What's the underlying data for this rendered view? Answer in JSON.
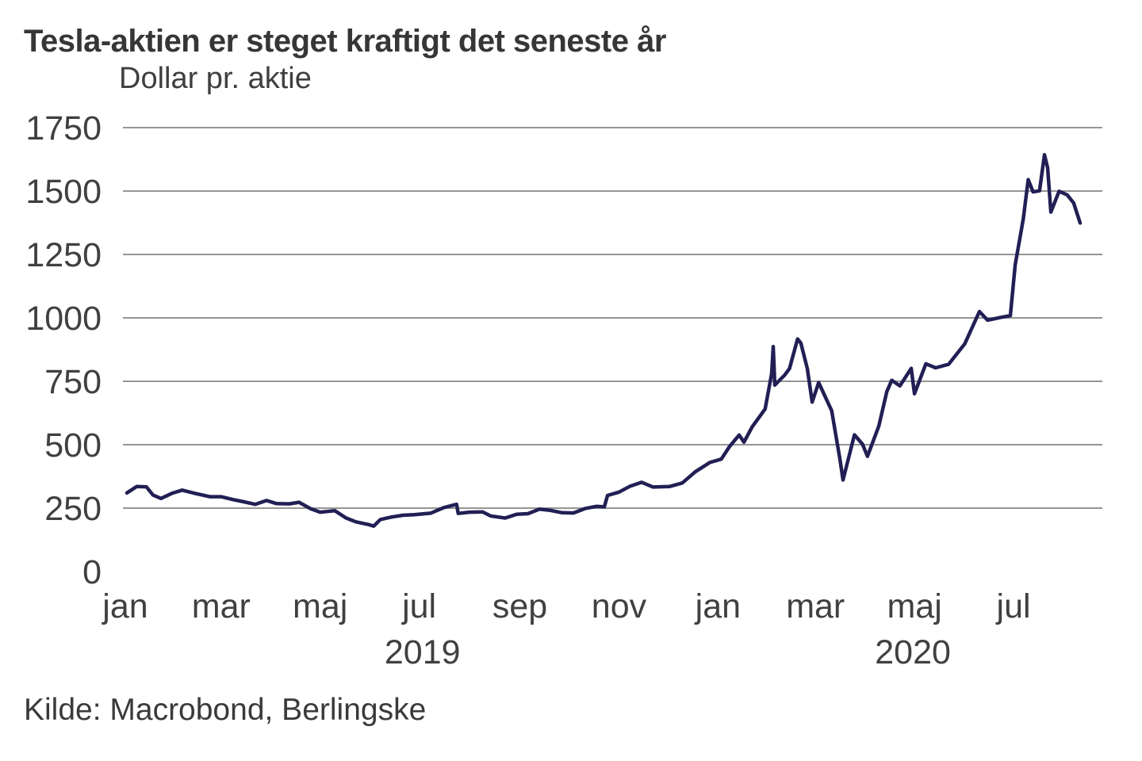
{
  "header": {
    "title": "Tesla-aktien er steget kraftigt det seneste år",
    "subtitle": "Dollar pr. aktie"
  },
  "footer": {
    "source": "Kilde: Macrobond, Berlingske"
  },
  "colors": {
    "line": "#221f55",
    "grid": "#868686",
    "text": "#404040",
    "background": "#ffffff"
  },
  "chart_data": {
    "type": "line",
    "title": "Tesla-aktien er steget kraftigt det seneste år",
    "ylabel": "Dollar pr. aktie",
    "ylim": [
      0,
      1750
    ],
    "yticks": [
      0,
      250,
      500,
      750,
      1000,
      1250,
      1500,
      1750
    ],
    "grid": "horizontal gridlines at 250-1750, none at 0",
    "legend": "none",
    "xlim": [
      "2019-01-01",
      "2020-08-11"
    ],
    "xticks": [
      {
        "label": "jan",
        "date": "2019-01-01"
      },
      {
        "label": "mar",
        "date": "2019-03-01"
      },
      {
        "label": "maj",
        "date": "2019-05-01"
      },
      {
        "label": "jul",
        "date": "2019-07-01"
      },
      {
        "label": "sep",
        "date": "2019-09-01"
      },
      {
        "label": "nov",
        "date": "2019-11-01"
      },
      {
        "label": "jan",
        "date": "2020-01-01"
      },
      {
        "label": "mar",
        "date": "2020-03-01"
      },
      {
        "label": "maj",
        "date": "2020-05-01"
      },
      {
        "label": "jul",
        "date": "2020-07-01"
      }
    ],
    "year_labels": [
      {
        "label": "2019",
        "date": "2019-07-03"
      },
      {
        "label": "2020",
        "date": "2020-04-30"
      }
    ],
    "series": [
      {
        "name": "Tesla share price (dollar per share)",
        "points": [
          [
            "2019-01-02",
            310
          ],
          [
            "2019-01-04",
            318
          ],
          [
            "2019-01-08",
            335
          ],
          [
            "2019-01-14",
            334
          ],
          [
            "2019-01-18",
            302
          ],
          [
            "2019-01-23",
            288
          ],
          [
            "2019-01-30",
            309
          ],
          [
            "2019-02-05",
            321
          ],
          [
            "2019-02-13",
            308
          ],
          [
            "2019-02-22",
            295
          ],
          [
            "2019-03-01",
            295
          ],
          [
            "2019-03-08",
            284
          ],
          [
            "2019-03-15",
            275
          ],
          [
            "2019-03-22",
            265
          ],
          [
            "2019-03-29",
            280
          ],
          [
            "2019-04-04",
            268
          ],
          [
            "2019-04-12",
            267
          ],
          [
            "2019-04-18",
            273
          ],
          [
            "2019-04-25",
            248
          ],
          [
            "2019-05-01",
            234
          ],
          [
            "2019-05-10",
            240
          ],
          [
            "2019-05-17",
            211
          ],
          [
            "2019-05-23",
            196
          ],
          [
            "2019-05-31",
            185
          ],
          [
            "2019-06-03",
            179
          ],
          [
            "2019-06-07",
            205
          ],
          [
            "2019-06-14",
            215
          ],
          [
            "2019-06-21",
            222
          ],
          [
            "2019-06-28",
            224
          ],
          [
            "2019-07-08",
            230
          ],
          [
            "2019-07-16",
            252
          ],
          [
            "2019-07-24",
            265
          ],
          [
            "2019-07-25",
            229
          ],
          [
            "2019-08-01",
            234
          ],
          [
            "2019-08-09",
            235
          ],
          [
            "2019-08-14",
            219
          ],
          [
            "2019-08-23",
            211
          ],
          [
            "2019-08-30",
            226
          ],
          [
            "2019-09-06",
            228
          ],
          [
            "2019-09-13",
            246
          ],
          [
            "2019-09-20",
            241
          ],
          [
            "2019-09-27",
            232
          ],
          [
            "2019-10-04",
            231
          ],
          [
            "2019-10-11",
            248
          ],
          [
            "2019-10-18",
            257
          ],
          [
            "2019-10-23",
            255
          ],
          [
            "2019-10-25",
            300
          ],
          [
            "2019-11-01",
            313
          ],
          [
            "2019-11-08",
            337
          ],
          [
            "2019-11-15",
            352
          ],
          [
            "2019-11-22",
            333
          ],
          [
            "2019-12-02",
            335
          ],
          [
            "2019-12-10",
            349
          ],
          [
            "2019-12-18",
            393
          ],
          [
            "2019-12-27",
            430
          ],
          [
            "2020-01-03",
            443
          ],
          [
            "2020-01-08",
            492
          ],
          [
            "2020-01-14",
            538
          ],
          [
            "2020-01-17",
            510
          ],
          [
            "2020-01-22",
            570
          ],
          [
            "2020-01-30",
            641
          ],
          [
            "2020-02-03",
            780
          ],
          [
            "2020-02-04",
            887
          ],
          [
            "2020-02-05",
            735
          ],
          [
            "2020-02-07",
            748
          ],
          [
            "2020-02-11",
            774
          ],
          [
            "2020-02-14",
            800
          ],
          [
            "2020-02-19",
            917
          ],
          [
            "2020-02-21",
            901
          ],
          [
            "2020-02-25",
            800
          ],
          [
            "2020-02-28",
            668
          ],
          [
            "2020-03-03",
            745
          ],
          [
            "2020-03-06",
            703
          ],
          [
            "2020-03-11",
            634
          ],
          [
            "2020-03-16",
            445
          ],
          [
            "2020-03-18",
            361
          ],
          [
            "2020-03-25",
            539
          ],
          [
            "2020-03-30",
            502
          ],
          [
            "2020-04-02",
            454
          ],
          [
            "2020-04-09",
            573
          ],
          [
            "2020-04-14",
            710
          ],
          [
            "2020-04-17",
            754
          ],
          [
            "2020-04-22",
            732
          ],
          [
            "2020-04-29",
            801
          ],
          [
            "2020-05-01",
            701
          ],
          [
            "2020-05-08",
            819
          ],
          [
            "2020-05-14",
            803
          ],
          [
            "2020-05-22",
            817
          ],
          [
            "2020-06-01",
            898
          ],
          [
            "2020-06-10",
            1025
          ],
          [
            "2020-06-15",
            991
          ],
          [
            "2020-06-23",
            1002
          ],
          [
            "2020-06-29",
            1009
          ],
          [
            "2020-07-02",
            1209
          ],
          [
            "2020-07-07",
            1390
          ],
          [
            "2020-07-10",
            1545
          ],
          [
            "2020-07-13",
            1497
          ],
          [
            "2020-07-17",
            1501
          ],
          [
            "2020-07-20",
            1643
          ],
          [
            "2020-07-22",
            1592
          ],
          [
            "2020-07-24",
            1417
          ],
          [
            "2020-07-29",
            1499
          ],
          [
            "2020-08-03",
            1485
          ],
          [
            "2020-08-07",
            1453
          ],
          [
            "2020-08-11",
            1374
          ]
        ]
      }
    ]
  }
}
